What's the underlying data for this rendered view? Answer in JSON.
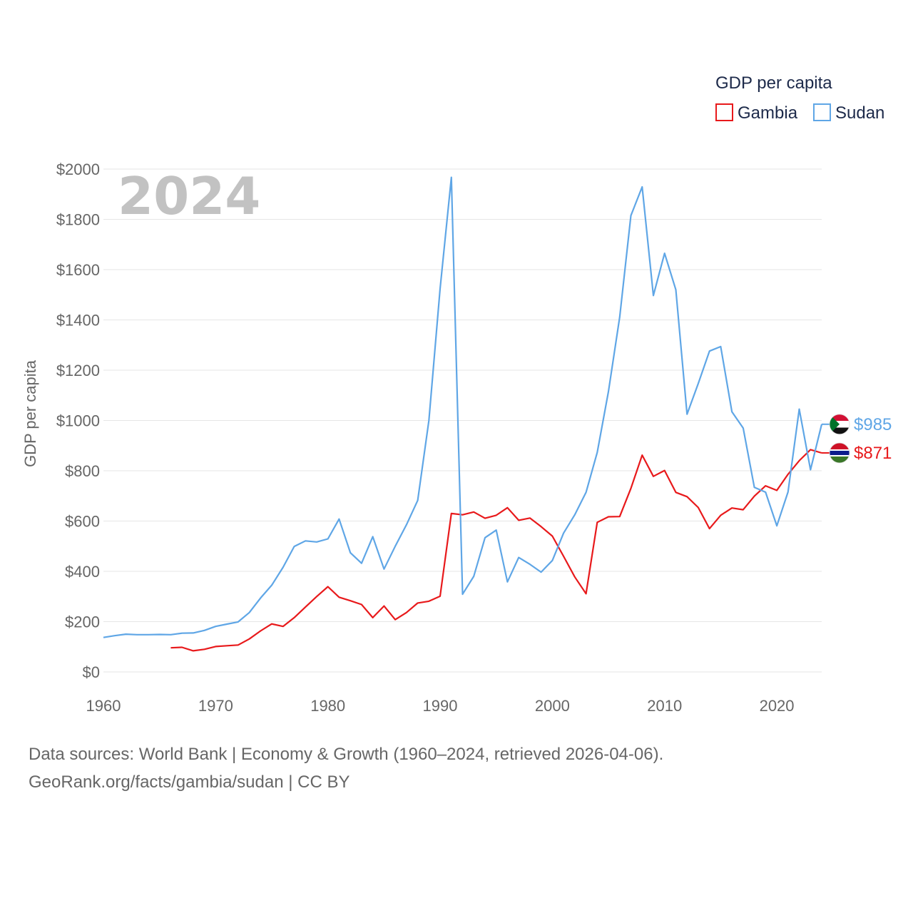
{
  "chart_data": {
    "type": "line",
    "legend_title": "GDP per capita",
    "ylabel": "GDP per capita",
    "year_label": "2024",
    "ylim": [
      0,
      2000
    ],
    "y_ticks": [
      "$0",
      "$200",
      "$400",
      "$600",
      "$800",
      "$1000",
      "$1200",
      "$1400",
      "$1600",
      "$1800",
      "$2000"
    ],
    "y_tick_values": [
      0,
      200,
      400,
      600,
      800,
      1000,
      1200,
      1400,
      1600,
      1800,
      2000
    ],
    "xlim": [
      1960,
      2024
    ],
    "x_ticks": [
      "1960",
      "1970",
      "1980",
      "1990",
      "2000",
      "2010",
      "2020"
    ],
    "x_tick_values": [
      1960,
      1970,
      1980,
      1990,
      2000,
      2010,
      2020
    ],
    "series": [
      {
        "name": "Gambia",
        "color": "#e8191b",
        "end_label": "$871",
        "flag_icon": "gambia-flag-icon",
        "x": [
          1966,
          1967,
          1968,
          1969,
          1970,
          1971,
          1972,
          1973,
          1974,
          1975,
          1976,
          1977,
          1978,
          1979,
          1980,
          1981,
          1982,
          1983,
          1984,
          1985,
          1986,
          1987,
          1988,
          1989,
          1990,
          1991,
          1992,
          1993,
          1994,
          1995,
          1996,
          1997,
          1998,
          1999,
          2000,
          2001,
          2002,
          2003,
          2004,
          2005,
          2006,
          2007,
          2008,
          2009,
          2010,
          2011,
          2012,
          2013,
          2014,
          2015,
          2016,
          2017,
          2018,
          2019,
          2020,
          2021,
          2022,
          2023,
          2024
        ],
        "values": [
          96,
          98,
          84,
          90,
          101,
          104,
          107,
          131,
          163,
          191,
          181,
          216,
          258,
          300,
          339,
          297,
          283,
          268,
          216,
          262,
          208,
          236,
          274,
          281,
          301,
          630,
          625,
          636,
          611,
          623,
          653,
          603,
          612,
          578,
          540,
          460,
          378,
          311,
          595,
          617,
          618,
          730,
          862,
          778,
          801,
          714,
          697,
          654,
          570,
          623,
          652,
          645,
          699,
          740,
          722,
          786,
          840,
          884,
          871
        ]
      },
      {
        "name": "Sudan",
        "color": "#5fa6e6",
        "end_label": "$985",
        "flag_icon": "sudan-flag-icon",
        "x": [
          1960,
          1961,
          1962,
          1963,
          1964,
          1965,
          1966,
          1967,
          1968,
          1969,
          1970,
          1971,
          1972,
          1973,
          1974,
          1975,
          1976,
          1977,
          1978,
          1979,
          1980,
          1981,
          1982,
          1983,
          1984,
          1985,
          1986,
          1987,
          1988,
          1989,
          1990,
          1991,
          1992,
          1993,
          1994,
          1995,
          1996,
          1997,
          1998,
          1999,
          2000,
          2001,
          2002,
          2003,
          2004,
          2005,
          2006,
          2007,
          2008,
          2009,
          2010,
          2011,
          2012,
          2013,
          2014,
          2015,
          2016,
          2017,
          2018,
          2019,
          2020,
          2021,
          2022,
          2023,
          2024
        ],
        "values": [
          137,
          144,
          150,
          148,
          148,
          149,
          148,
          154,
          155,
          165,
          181,
          190,
          199,
          236,
          294,
          345,
          416,
          499,
          521,
          517,
          529,
          608,
          474,
          432,
          538,
          409,
          500,
          585,
          682,
          1000,
          1524,
          1967,
          309,
          380,
          534,
          564,
          358,
          455,
          428,
          397,
          443,
          552,
          625,
          714,
          873,
          1115,
          1411,
          1815,
          1929,
          1497,
          1665,
          1520,
          1025,
          1147,
          1276,
          1294,
          1035,
          970,
          734,
          715,
          581,
          716,
          1045,
          804,
          985
        ]
      }
    ]
  },
  "footer": {
    "line1": "Data sources: World Bank | Economy & Growth (1960–2024, retrieved 2026-04-06).",
    "line2": "GeoRank.org/facts/gambia/sudan | CC BY"
  }
}
